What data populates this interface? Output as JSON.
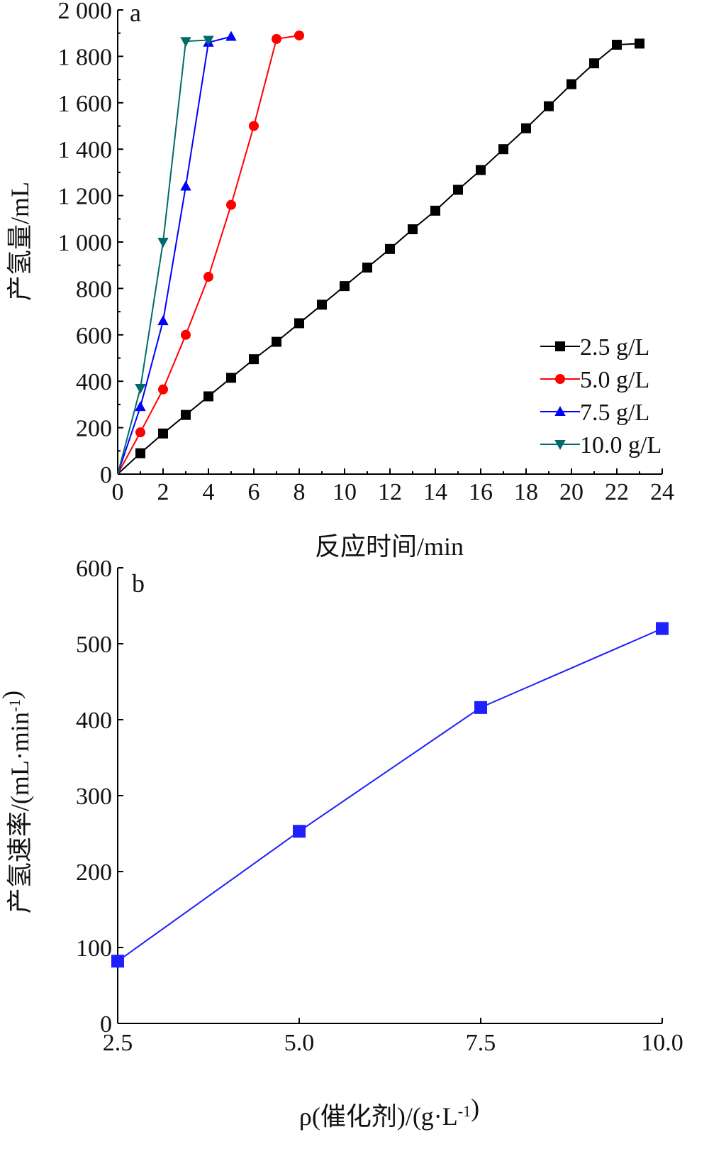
{
  "chart_data": [
    {
      "panel_label": "a",
      "type": "line",
      "xlabel": "反应时间/min",
      "ylabel": "产氢量/mL",
      "xlim": [
        0,
        24
      ],
      "ylim": [
        0,
        2000
      ],
      "xticks": [
        "0",
        "2",
        "4",
        "6",
        "8",
        "10",
        "12",
        "14",
        "16",
        "18",
        "20",
        "22",
        "24"
      ],
      "yticks": [
        "0",
        "200",
        "400",
        "600",
        "800",
        "1 000",
        "1 200",
        "1 400",
        "1 600",
        "1 800",
        "2 000"
      ],
      "grid": false,
      "legend_position": "bottom-right",
      "series": [
        {
          "name": "2.5 g/L",
          "color": "#000000",
          "marker": "square",
          "x": [
            0,
            1,
            2,
            3,
            4,
            5,
            6,
            7,
            8,
            9,
            10,
            11,
            12,
            13,
            14,
            15,
            16,
            17,
            18,
            19,
            20,
            21,
            22,
            23
          ],
          "y": [
            0,
            90,
            175,
            255,
            335,
            415,
            495,
            570,
            650,
            730,
            810,
            890,
            970,
            1055,
            1135,
            1225,
            1310,
            1400,
            1490,
            1585,
            1680,
            1770,
            1850,
            1855
          ]
        },
        {
          "name": "5.0 g/L",
          "color": "#ff0000",
          "marker": "circle",
          "x": [
            0,
            1,
            2,
            3,
            4,
            5,
            6,
            7,
            8
          ],
          "y": [
            0,
            180,
            365,
            600,
            850,
            1160,
            1500,
            1875,
            1890
          ]
        },
        {
          "name": "7.5 g/L",
          "color": "#0000ff",
          "marker": "triangle-up",
          "x": [
            0,
            1,
            2,
            3,
            4,
            5
          ],
          "y": [
            0,
            290,
            660,
            1240,
            1860,
            1885
          ]
        },
        {
          "name": "10.0 g/L",
          "color": "#006b6b",
          "marker": "triangle-down",
          "x": [
            0,
            1,
            2,
            3,
            4
          ],
          "y": [
            0,
            370,
            1000,
            1865,
            1870
          ]
        }
      ]
    },
    {
      "panel_label": "b",
      "type": "line",
      "xlabel": "ρ(催化剂)/(g·L-1)",
      "ylabel": "产氢速率/(mL·min-1)",
      "xlim": [
        2.5,
        10.0
      ],
      "ylim": [
        0,
        600
      ],
      "xticks": [
        "2.5",
        "5.0",
        "7.5",
        "10.0"
      ],
      "yticks": [
        "0",
        "100",
        "200",
        "300",
        "400",
        "500",
        "600"
      ],
      "grid": false,
      "series": [
        {
          "color": "#1f1fff",
          "marker": "square",
          "x": [
            2.5,
            5.0,
            7.5,
            10.0
          ],
          "y": [
            82,
            253,
            416,
            520
          ]
        }
      ]
    }
  ]
}
